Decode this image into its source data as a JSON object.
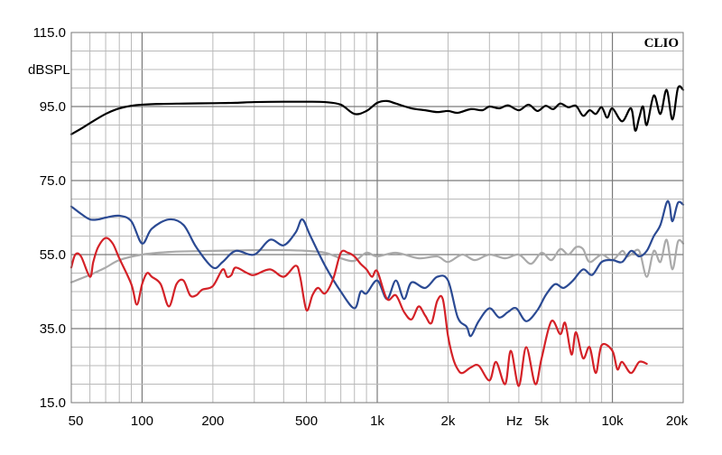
{
  "chart_data": {
    "type": "line",
    "title": "",
    "brand": "CLIO",
    "ylabel": "dBSPL",
    "xlabel": "Hz",
    "xscale": "log",
    "xlim": [
      50,
      20000
    ],
    "ylim": [
      15,
      115
    ],
    "y_ticks": [
      15.0,
      35.0,
      55.0,
      75.0,
      95.0,
      115.0
    ],
    "y_tick_labels": [
      "15.0",
      "35.0",
      "55.0",
      "75.0",
      "95.0",
      "115.0"
    ],
    "x_ticks": [
      50,
      100,
      200,
      500,
      1000,
      2000,
      5000,
      10000,
      20000
    ],
    "x_tick_labels": [
      "50",
      "100",
      "200",
      "500",
      "1k",
      "2k",
      "5k",
      "10k",
      "20k"
    ],
    "grid": true,
    "series": [
      {
        "color": "#000000",
        "x": [
          50,
          55,
          60,
          70,
          80,
          90,
          100,
          120,
          150,
          200,
          250,
          300,
          400,
          500,
          600,
          700,
          800,
          900,
          1000,
          1100,
          1200,
          1400,
          1600,
          1800,
          2000,
          2200,
          2500,
          2800,
          3000,
          3300,
          3600,
          4000,
          4400,
          4800,
          5200,
          5600,
          6000,
          6500,
          7000,
          7500,
          8000,
          8500,
          9000,
          9500,
          10000,
          11000,
          12000,
          12500,
          13000,
          13500,
          14000,
          15000,
          16000,
          17000,
          18000,
          19000,
          20000
        ],
        "y": [
          87.5,
          89,
          90.5,
          93,
          94.5,
          95.2,
          95.5,
          95.7,
          95.8,
          95.9,
          96,
          96.2,
          96.3,
          96.3,
          96.2,
          95.5,
          93,
          93.8,
          96,
          96.5,
          95.8,
          94.5,
          94,
          93.5,
          93.8,
          93.3,
          94.3,
          94,
          95,
          94.5,
          95.3,
          94,
          95.5,
          93.8,
          95.2,
          94.3,
          95.8,
          94.8,
          95.2,
          92.5,
          94,
          93,
          94.8,
          92,
          94.5,
          91,
          94.5,
          88.5,
          92,
          95,
          90,
          98,
          93,
          99.5,
          91.5,
          100,
          99.5
        ]
      },
      {
        "color": "#2b4a93",
        "x": [
          50,
          55,
          60,
          65,
          70,
          80,
          90,
          100,
          110,
          130,
          150,
          170,
          200,
          220,
          250,
          300,
          350,
          400,
          450,
          480,
          520,
          600,
          700,
          800,
          850,
          900,
          1000,
          1100,
          1200,
          1300,
          1400,
          1600,
          1800,
          2000,
          2200,
          2400,
          2500,
          2700,
          3000,
          3300,
          3600,
          3900,
          4300,
          4800,
          5200,
          5700,
          6200,
          6800,
          7500,
          8200,
          9000,
          10000,
          11000,
          12000,
          13000,
          14000,
          15000,
          16000,
          17000,
          17500,
          18000,
          19000,
          20000
        ],
        "y": [
          68,
          66,
          64.5,
          64.5,
          65,
          65.5,
          64,
          58,
          62,
          64.5,
          63,
          57,
          51.5,
          53,
          56,
          55,
          59,
          57.5,
          61,
          64.5,
          60,
          52,
          45,
          40.5,
          45,
          44.5,
          48,
          43,
          48,
          43,
          47.5,
          46,
          49,
          48,
          38,
          35.5,
          33,
          37,
          40.5,
          38,
          39.5,
          40.5,
          37,
          40,
          44,
          47,
          46,
          48,
          51,
          49.5,
          53,
          53.5,
          53,
          56,
          54.5,
          56,
          60,
          63,
          69,
          68.5,
          64,
          69,
          68.5
        ]
      },
      {
        "color": "#aaaaaa",
        "x": [
          50,
          60,
          70,
          80,
          100,
          130,
          160,
          200,
          300,
          400,
          500,
          600,
          700,
          800,
          900,
          1000,
          1200,
          1500,
          1800,
          2000,
          2300,
          2600,
          3000,
          3500,
          4000,
          4500,
          5000,
          5500,
          6000,
          6500,
          7000,
          7500,
          8000,
          9000,
          10000,
          11000,
          11500,
          12000,
          13000,
          14000,
          15000,
          16000,
          17000,
          18000,
          19000,
          20000
        ],
        "y": [
          47.5,
          49.5,
          51.5,
          53.5,
          55,
          55.7,
          55.9,
          56,
          56.2,
          56.2,
          56,
          55.5,
          54,
          53.3,
          55.5,
          54.5,
          55.5,
          54,
          54.5,
          53,
          55,
          53.5,
          55,
          54,
          55,
          52.5,
          55.5,
          53.5,
          56.5,
          55,
          57,
          56.5,
          53,
          55,
          53.5,
          56,
          54.5,
          55,
          56,
          49,
          56,
          53,
          59,
          51,
          58.5,
          58
        ]
      },
      {
        "color": "#d42127",
        "x": [
          50,
          52,
          55,
          60,
          62,
          65,
          70,
          75,
          80,
          90,
          95,
          100,
          105,
          110,
          120,
          130,
          140,
          150,
          160,
          170,
          180,
          200,
          220,
          230,
          240,
          250,
          280,
          300,
          350,
          400,
          450,
          470,
          500,
          530,
          560,
          600,
          650,
          700,
          750,
          800,
          850,
          900,
          950,
          1000,
          1100,
          1200,
          1300,
          1400,
          1500,
          1600,
          1700,
          1800,
          1900,
          2000,
          2100,
          2200,
          2300,
          2500,
          2700,
          3000,
          3200,
          3500,
          3700,
          4000,
          4300,
          4700,
          5000,
          5500,
          6000,
          6300,
          6700,
          7000,
          7500,
          8000,
          8500,
          9000,
          10000,
          10500,
          11000,
          12000,
          13000,
          14000
        ],
        "y": [
          51.5,
          55,
          54.5,
          49,
          53,
          57,
          59.5,
          58,
          54,
          47,
          41.5,
          47,
          50,
          49,
          47,
          41,
          47,
          48,
          44,
          44,
          45.5,
          46.5,
          51,
          49,
          49.5,
          51.5,
          50,
          49.5,
          51,
          49,
          52,
          49,
          40,
          44,
          46,
          44.5,
          48.5,
          55.5,
          55.5,
          54.5,
          52.5,
          51,
          49,
          50.5,
          43,
          44,
          39.5,
          37.5,
          41,
          38.5,
          36.5,
          42.5,
          43,
          33,
          27,
          24,
          23,
          24.5,
          25,
          21,
          26,
          20,
          29,
          19.5,
          30,
          20,
          27,
          37,
          33.5,
          36.5,
          28,
          34,
          27,
          30,
          23,
          30.5,
          29,
          24,
          26,
          23,
          26,
          25.5
        ]
      }
    ]
  }
}
